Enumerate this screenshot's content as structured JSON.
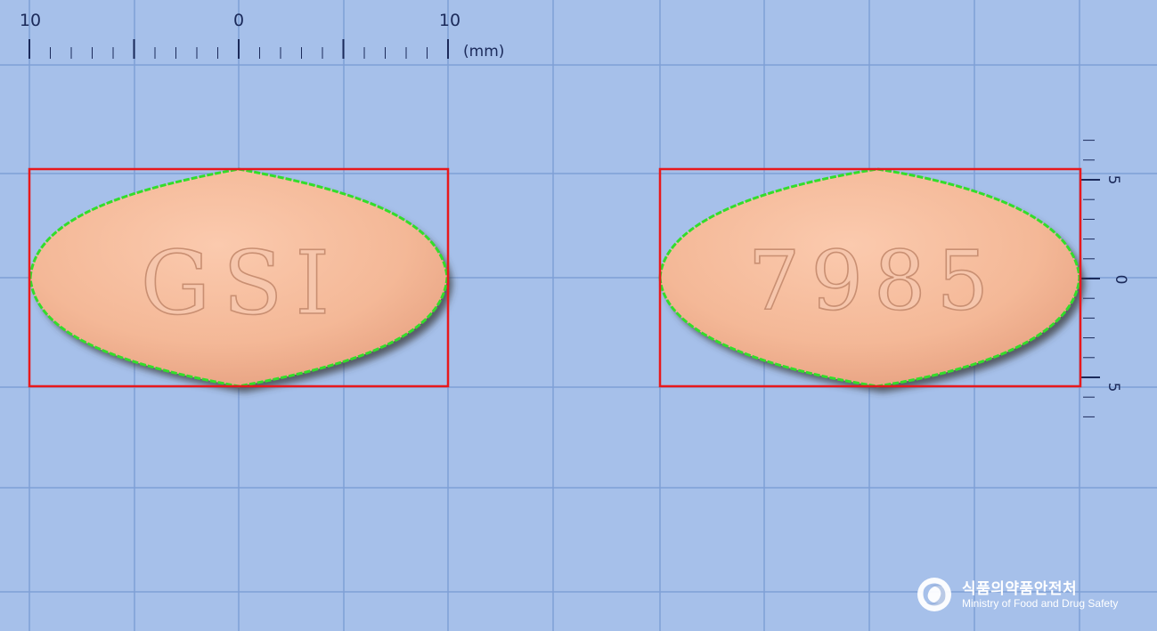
{
  "ruler_top": {
    "tick_labels": [
      "10",
      "0",
      "10"
    ],
    "unit": "(mm)"
  },
  "ruler_right": {
    "tick_labels": [
      "5",
      "0",
      "5"
    ]
  },
  "tablets": [
    {
      "side": "front",
      "imprint": "GSI",
      "color": "#f4b897"
    },
    {
      "side": "back",
      "imprint": "7985",
      "color": "#f4b897"
    }
  ],
  "colors": {
    "background": "#a6c0ea",
    "grid_line": "#7f9fd6",
    "bounding_box": "#e8181c",
    "outline": "#33dd2a",
    "ruler_ink": "#1b2a5a"
  },
  "watermark": {
    "korean": "식품의약품안전처",
    "english": "Ministry of Food and Drug Safety"
  }
}
